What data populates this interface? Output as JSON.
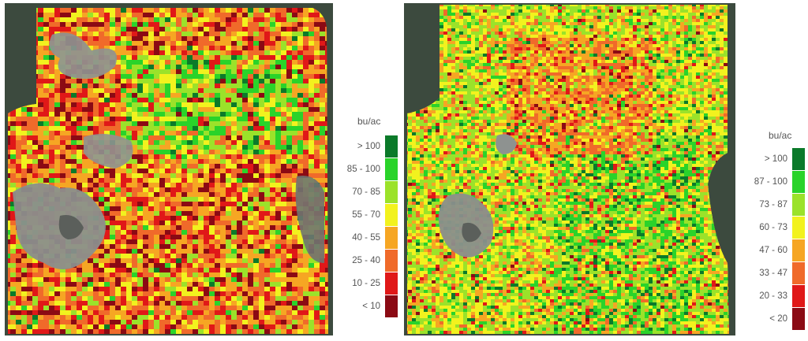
{
  "maps": [
    {
      "legend": {
        "unit": "bu/ac",
        "classes": [
          {
            "label": "> 100",
            "color": "#0b7a2a"
          },
          {
            "label": "85 - 100",
            "color": "#2ad32a"
          },
          {
            "label": "70 - 85",
            "color": "#9be22a"
          },
          {
            "label": "55 - 70",
            "color": "#f2f21e"
          },
          {
            "label": "40 - 55",
            "color": "#f6a623"
          },
          {
            "label": "25 - 40",
            "color": "#f06a2a"
          },
          {
            "label": "10 - 25",
            "color": "#e01818"
          },
          {
            "label": "< 10",
            "color": "#8b0a14"
          }
        ]
      }
    },
    {
      "legend": {
        "unit": "bu/ac",
        "classes": [
          {
            "label": "> 100",
            "color": "#0b7a2a"
          },
          {
            "label": "87 - 100",
            "color": "#2ad32a"
          },
          {
            "label": "73 - 87",
            "color": "#9be22a"
          },
          {
            "label": "60 - 73",
            "color": "#f2f21e"
          },
          {
            "label": "47 - 60",
            "color": "#f6a623"
          },
          {
            "label": "33 - 47",
            "color": "#f06a2a"
          },
          {
            "label": "20 - 33",
            "color": "#e01818"
          },
          {
            "label": "< 20",
            "color": "#8b0a14"
          }
        ]
      }
    }
  ]
}
